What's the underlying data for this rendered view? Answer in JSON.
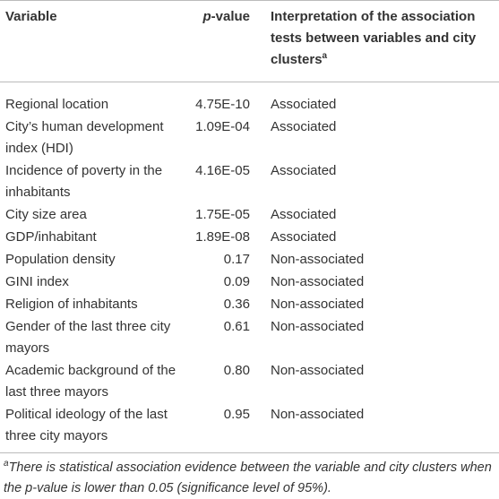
{
  "header": [
    {
      "text": "Variable"
    },
    {
      "italic": "p",
      "text": "-value"
    },
    {
      "text": "Interpretation of the association tests between variables and city clusters",
      "superscript": "a"
    }
  ],
  "rows": [
    [
      "Regional location",
      "4.75E-10",
      "Associated"
    ],
    [
      "City’s human development index (HDI)",
      "1.09E-04",
      "Associated"
    ],
    [
      "Incidence of poverty in the inhabitants",
      "4.16E-05",
      "Associated"
    ],
    [
      "City size area",
      "1.75E-05",
      "Associated"
    ],
    [
      "GDP/inhabitant",
      "1.89E-08",
      "Associated"
    ],
    [
      "Population density",
      "0.17",
      "Non-associated"
    ],
    [
      "GINI index",
      "0.09",
      "Non-associated"
    ],
    [
      "Religion of inhabitants",
      "0.36",
      "Non-associated"
    ],
    [
      "Gender of the last three city mayors",
      "0.61",
      "Non-associated"
    ],
    [
      "Academic background of the last three mayors",
      "0.80",
      "Non-associated"
    ],
    [
      "Political ideology of the last three city mayors",
      "0.95",
      "Non-associated"
    ]
  ],
  "footnote": {
    "marker": "a",
    "text": "There is statistical association evidence between the variable and city clusters when the p-value is lower than 0.05 (significance level of 95%)."
  }
}
